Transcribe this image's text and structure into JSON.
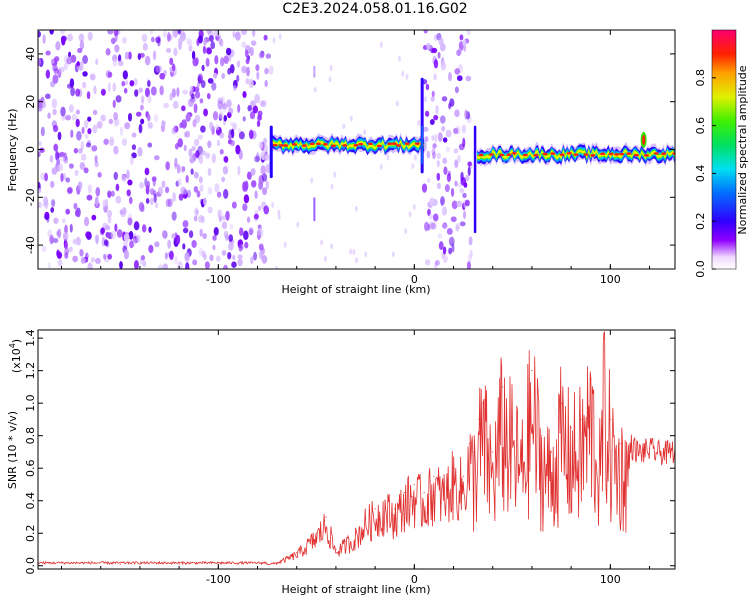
{
  "title": "C2E3.2024.058.01.16.G02",
  "chart_data": [
    {
      "type": "heatmap",
      "xlabel": "Height of straight line (km)",
      "ylabel": "Frequency (Hz)",
      "xlim": [
        -192,
        133
      ],
      "ylim": [
        -50,
        50
      ],
      "x_ticks": [
        -100,
        0,
        100
      ],
      "x_tick_labels": [
        "-100",
        "0",
        "100"
      ],
      "y_ticks": [
        -40,
        -20,
        0,
        20,
        40
      ],
      "y_tick_labels": [
        "-40",
        "-20",
        "0",
        "20",
        "40"
      ],
      "grid": false,
      "colorbar": {
        "label": "Normalized spectral amplitude",
        "range": [
          0,
          1
        ],
        "ticks": [
          0.0,
          0.2,
          0.4,
          0.6,
          0.8
        ],
        "tick_labels": [
          "0.0",
          "0.2",
          "0.4",
          "0.6",
          "0.8"
        ]
      },
      "regions": [
        {
          "x": [
            -192,
            -73
          ],
          "kind": "noise"
        },
        {
          "x": [
            -73,
            5
          ],
          "kind": "signal",
          "freq_center": 2
        },
        {
          "x": [
            5,
            29
          ],
          "kind": "noise"
        },
        {
          "x": [
            32,
            133
          ],
          "kind": "signal",
          "freq_center": -2
        }
      ]
    },
    {
      "type": "line",
      "xlabel": "Height of straight line (km)",
      "ylabel": "SNR (10 * v/v)",
      "yscale_label": "(x10",
      "yscale_exp": "4",
      "xlim": [
        -192,
        133
      ],
      "ylim": [
        -0.02,
        1.45
      ],
      "x_ticks": [
        -100,
        0,
        100
      ],
      "x_tick_labels": [
        "-100",
        "0",
        "100"
      ],
      "y_ticks": [
        0.0,
        0.2,
        0.4,
        0.6,
        0.8,
        1.0,
        1.2,
        1.4
      ],
      "y_tick_labels": [
        "0.0",
        "0.2",
        "0.4",
        "0.6",
        "0.8",
        "1.0",
        "1.2",
        "1.4"
      ],
      "grid": false,
      "series": [
        {
          "color": "#e03030",
          "x": [
            -192,
            -150,
            -120,
            -90,
            -75,
            -70,
            -60,
            -50,
            -45,
            -40,
            -35,
            -30,
            -25,
            -20,
            -15,
            -10,
            -5,
            0,
            5,
            10,
            15,
            20,
            25,
            28,
            30,
            33,
            35,
            40,
            45,
            50,
            55,
            60,
            65,
            70,
            75,
            80,
            85,
            90,
            95,
            97,
            100,
            105,
            110,
            115,
            120,
            125,
            130,
            133
          ],
          "y": [
            0.01,
            0.01,
            0.01,
            0.01,
            0.01,
            0.02,
            0.08,
            0.2,
            0.3,
            0.1,
            0.15,
            0.2,
            0.3,
            0.35,
            0.4,
            0.35,
            0.45,
            0.5,
            0.45,
            0.55,
            0.5,
            0.6,
            0.55,
            0.75,
            0.7,
            0.9,
            1.0,
            0.7,
            1.1,
            0.9,
            0.75,
            1.2,
            0.8,
            0.7,
            1.0,
            0.85,
            0.9,
            1.15,
            0.7,
            1.4,
            0.9,
            0.75,
            0.75,
            0.7,
            0.72,
            0.7,
            0.7,
            0.72
          ]
        }
      ]
    }
  ]
}
